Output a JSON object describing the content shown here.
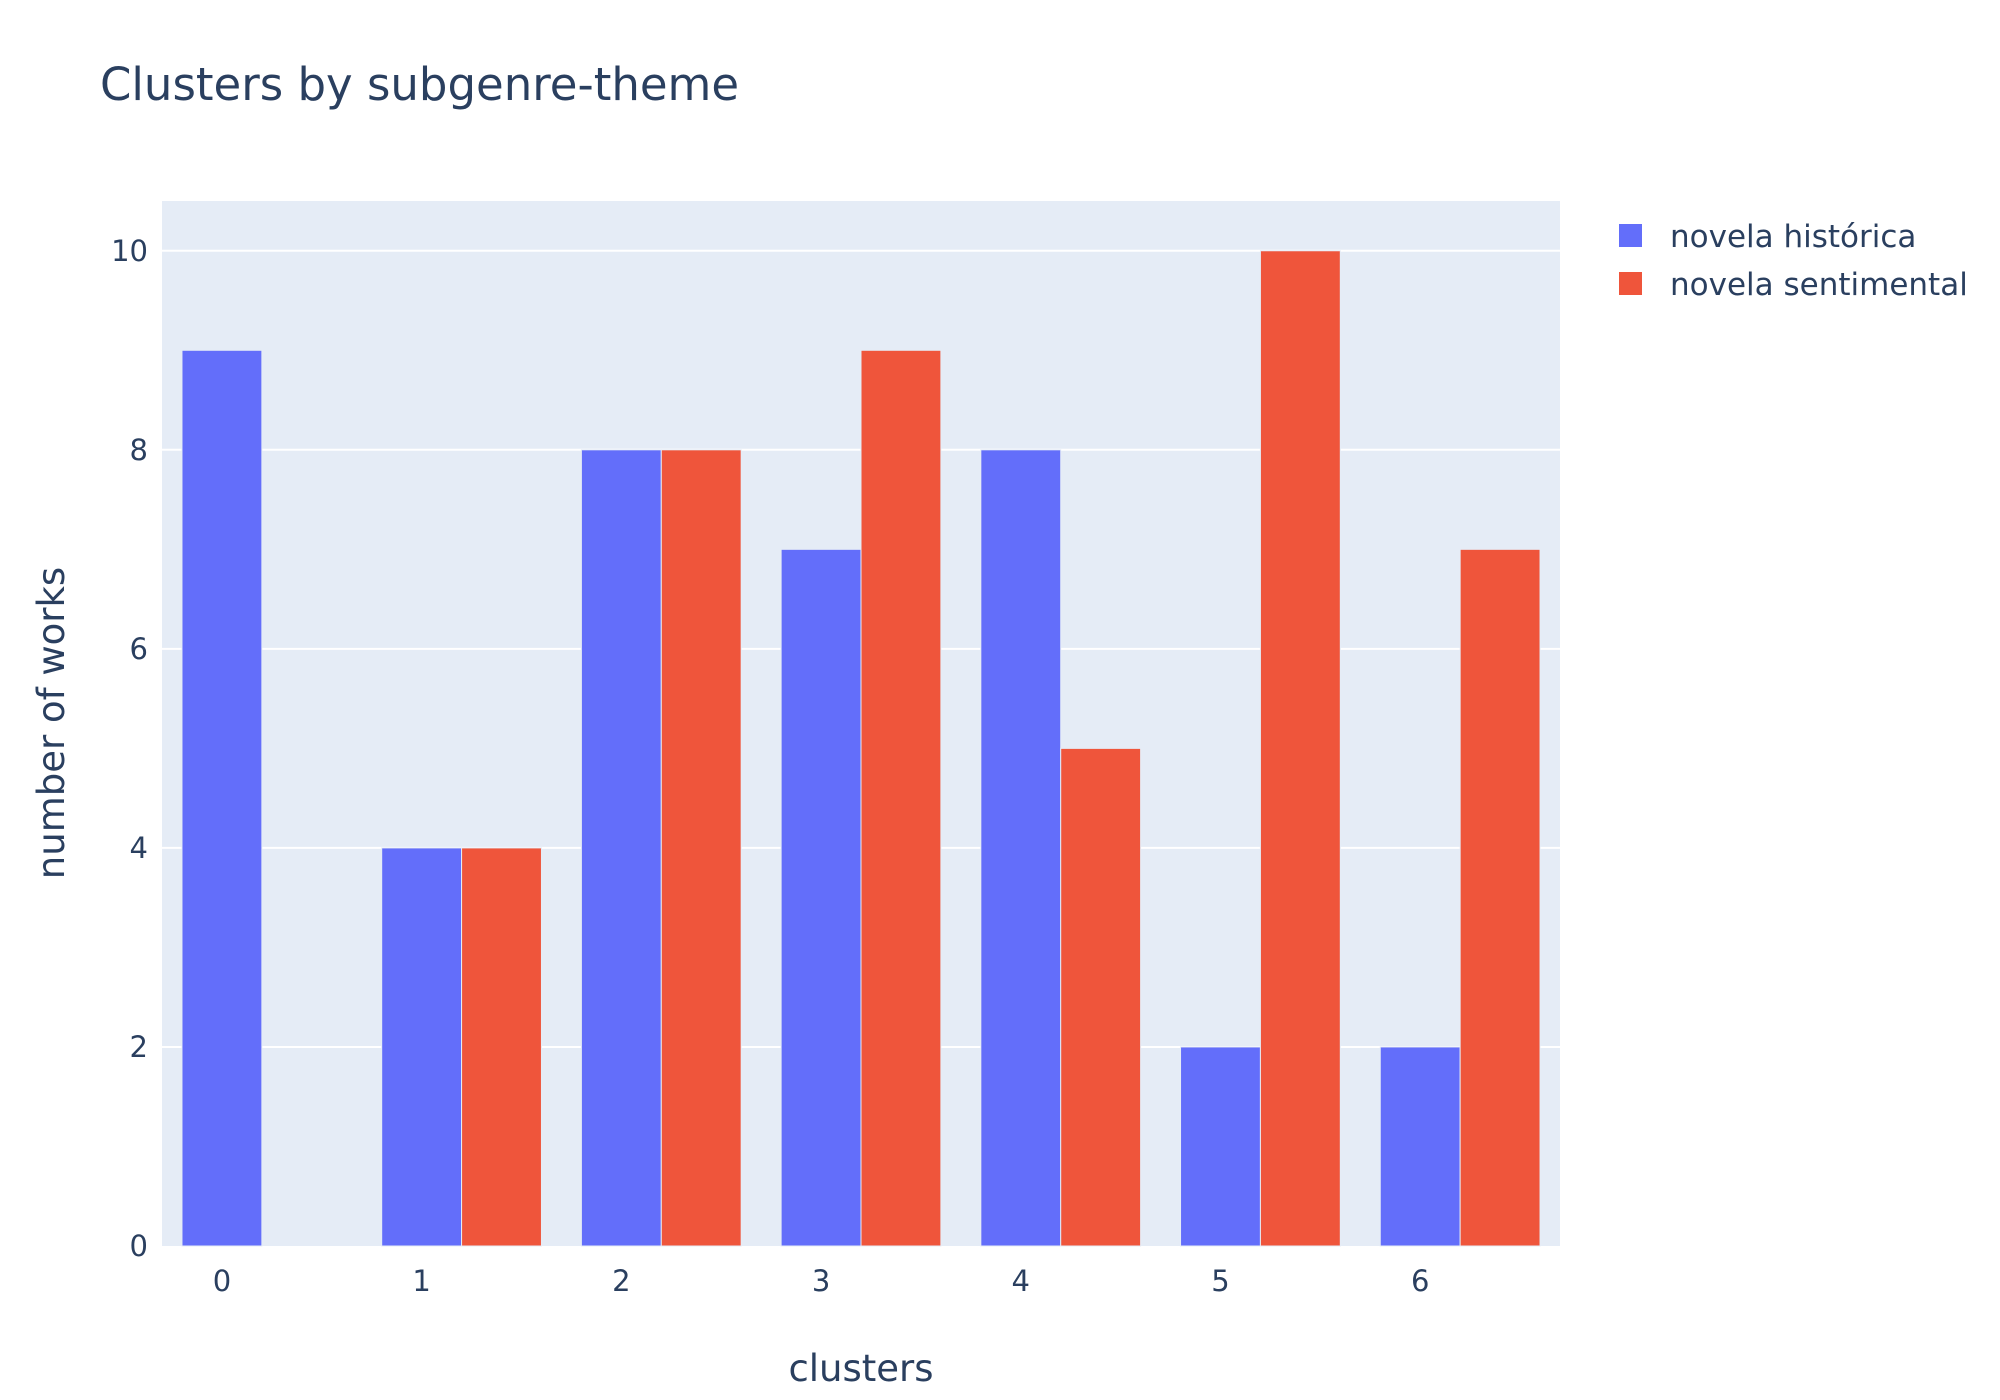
{
  "chart_data": {
    "type": "bar",
    "title": "Clusters by subgenre-theme",
    "xlabel": "clusters",
    "ylabel": "number of works",
    "categories": [
      "0",
      "1",
      "2",
      "3",
      "4",
      "5",
      "6"
    ],
    "series": [
      {
        "name": "novela histórica",
        "color": "#636efa",
        "values": [
          9,
          4,
          8,
          7,
          8,
          2,
          2
        ]
      },
      {
        "name": "novela sentimental",
        "color": "#ef553b",
        "values": [
          0,
          4,
          8,
          9,
          5,
          10,
          7
        ]
      }
    ],
    "ylim": [
      0,
      10.5
    ],
    "yticks": [
      0,
      2,
      4,
      6,
      8,
      10
    ],
    "grid": true,
    "legend_position": "top-right",
    "plot_background": "#e5ecf6"
  }
}
